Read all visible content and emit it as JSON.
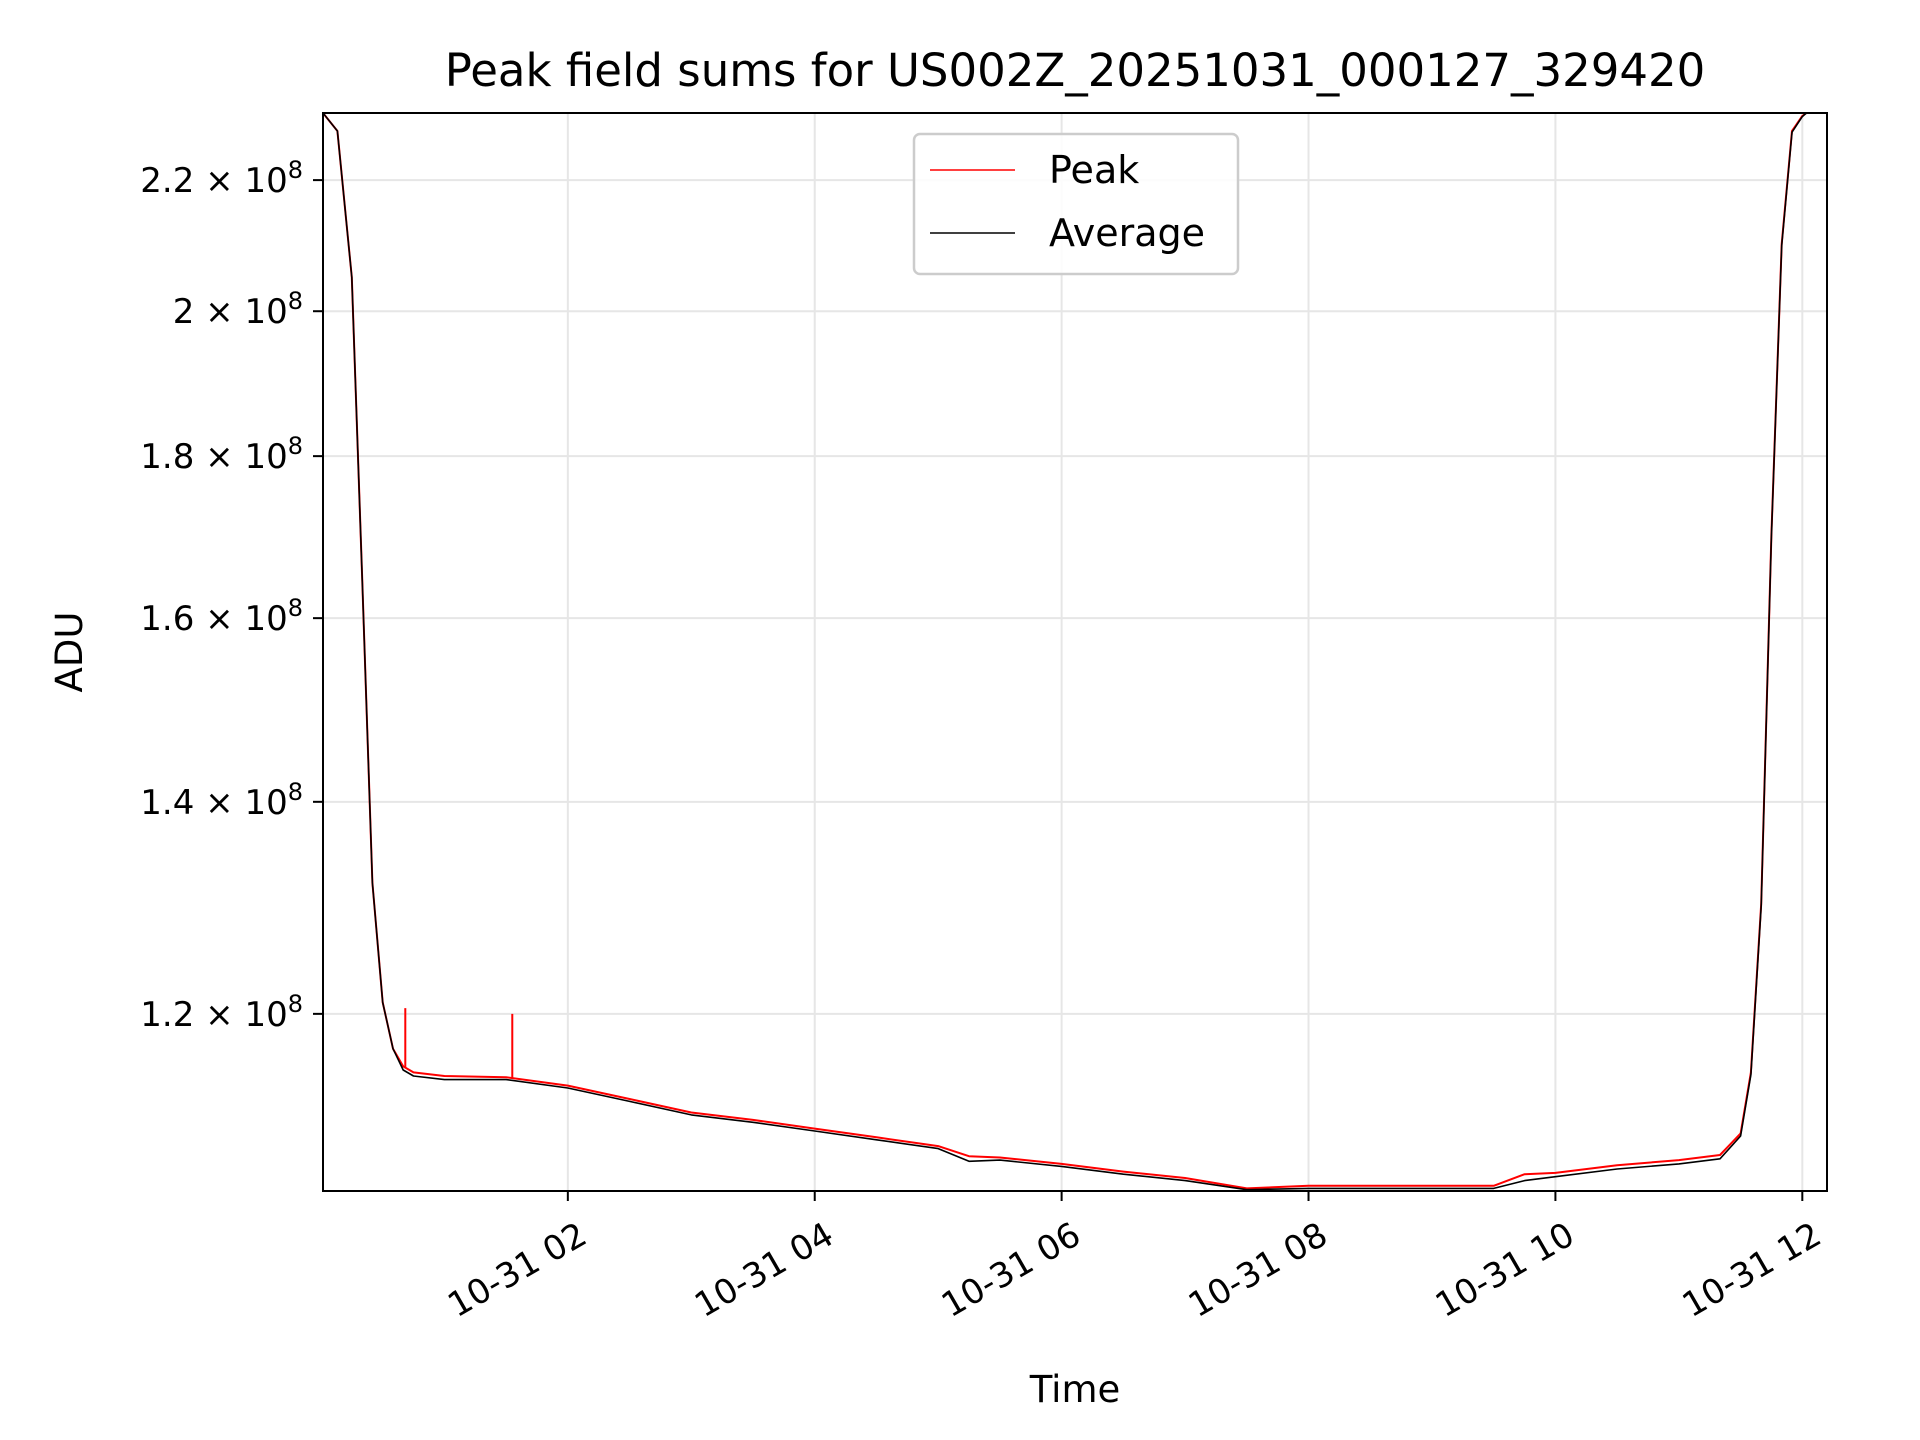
{
  "chart_data": {
    "type": "line",
    "title": "Peak field sums for US002Z_20251031_000127_329420",
    "xlabel": "Time",
    "ylabel": "ADU",
    "y_scale": "log",
    "grid": true,
    "legend_position": "top-center",
    "xlim": [
      "2025-10-31T00:01",
      "2025-10-31T12:12"
    ],
    "ylim": [
      105500000,
      231000000
    ],
    "x_ticks": [
      {
        "value": "2025-10-31T02:00",
        "label": "10-31 02"
      },
      {
        "value": "2025-10-31T04:00",
        "label": "10-31 04"
      },
      {
        "value": "2025-10-31T06:00",
        "label": "10-31 06"
      },
      {
        "value": "2025-10-31T08:00",
        "label": "10-31 08"
      },
      {
        "value": "2025-10-31T10:00",
        "label": "10-31 10"
      },
      {
        "value": "2025-10-31T12:00",
        "label": "10-31 12"
      }
    ],
    "y_ticks": [
      {
        "value": 120000000,
        "mantissa": "1.2",
        "base": "10",
        "exponent": "8"
      },
      {
        "value": 140000000,
        "mantissa": "1.4",
        "base": "10",
        "exponent": "8"
      },
      {
        "value": 160000000,
        "mantissa": "1.6",
        "base": "10",
        "exponent": "8"
      },
      {
        "value": 180000000,
        "mantissa": "1.8",
        "base": "10",
        "exponent": "8"
      },
      {
        "value": 200000000,
        "mantissa": "2",
        "base": "10",
        "exponent": "8"
      },
      {
        "value": 220000000,
        "mantissa": "2.2",
        "base": "10",
        "exponent": "8"
      }
    ],
    "series": [
      {
        "name": "Peak",
        "color": "#ff0000",
        "x": [
          "2025-10-31T00:01",
          "2025-10-31T00:08",
          "2025-10-31T00:15",
          "2025-10-31T00:20",
          "2025-10-31T00:25",
          "2025-10-31T00:30",
          "2025-10-31T00:35",
          "2025-10-31T00:40",
          "2025-10-31T00:45",
          "2025-10-31T01:00",
          "2025-10-31T01:30",
          "2025-10-31T02:00",
          "2025-10-31T02:30",
          "2025-10-31T03:00",
          "2025-10-31T03:30",
          "2025-10-31T04:00",
          "2025-10-31T04:30",
          "2025-10-31T05:00",
          "2025-10-31T05:15",
          "2025-10-31T05:30",
          "2025-10-31T06:00",
          "2025-10-31T06:30",
          "2025-10-31T07:00",
          "2025-10-31T07:30",
          "2025-10-31T08:00",
          "2025-10-31T08:30",
          "2025-10-31T09:00",
          "2025-10-31T09:30",
          "2025-10-31T09:45",
          "2025-10-31T10:00",
          "2025-10-31T10:30",
          "2025-10-31T11:00",
          "2025-10-31T11:20",
          "2025-10-31T11:30",
          "2025-10-31T11:35",
          "2025-10-31T11:40",
          "2025-10-31T11:45",
          "2025-10-31T11:50",
          "2025-10-31T11:55",
          "2025-10-31T12:00",
          "2025-10-31T12:02"
        ],
        "values": [
          231000000,
          228000000,
          205000000,
          165000000,
          132000000,
          121000000,
          117000000,
          115500000,
          115000000,
          114700000,
          114600000,
          113900000,
          112800000,
          111700000,
          111100000,
          110400000,
          109700000,
          109000000,
          108200000,
          108100000,
          107600000,
          107000000,
          106500000,
          105700000,
          105900000,
          105900000,
          105900000,
          105900000,
          106800000,
          106900000,
          107500000,
          107900000,
          108300000,
          110000000,
          115000000,
          130000000,
          170000000,
          210000000,
          228000000,
          230500000,
          231000000
        ]
      },
      {
        "name": "Average",
        "color": "#000000",
        "x": [
          "2025-10-31T00:01",
          "2025-10-31T00:08",
          "2025-10-31T00:15",
          "2025-10-31T00:20",
          "2025-10-31T00:25",
          "2025-10-31T00:30",
          "2025-10-31T00:35",
          "2025-10-31T00:40",
          "2025-10-31T00:45",
          "2025-10-31T01:00",
          "2025-10-31T01:30",
          "2025-10-31T02:00",
          "2025-10-31T02:30",
          "2025-10-31T03:00",
          "2025-10-31T03:30",
          "2025-10-31T04:00",
          "2025-10-31T04:30",
          "2025-10-31T05:00",
          "2025-10-31T05:15",
          "2025-10-31T05:30",
          "2025-10-31T06:00",
          "2025-10-31T06:30",
          "2025-10-31T07:00",
          "2025-10-31T07:30",
          "2025-10-31T08:00",
          "2025-10-31T08:30",
          "2025-10-31T09:00",
          "2025-10-31T09:30",
          "2025-10-31T09:45",
          "2025-10-31T10:00",
          "2025-10-31T10:30",
          "2025-10-31T11:00",
          "2025-10-31T11:20",
          "2025-10-31T11:30",
          "2025-10-31T11:35",
          "2025-10-31T11:40",
          "2025-10-31T11:45",
          "2025-10-31T11:50",
          "2025-10-31T11:55",
          "2025-10-31T12:00",
          "2025-10-31T12:02"
        ],
        "values": [
          231000000,
          228000000,
          205000000,
          165000000,
          132000000,
          121000000,
          117000000,
          115200000,
          114700000,
          114400000,
          114400000,
          113700000,
          112600000,
          111500000,
          110900000,
          110200000,
          109500000,
          108800000,
          107800000,
          107900000,
          107400000,
          106800000,
          106300000,
          105600000,
          105700000,
          105700000,
          105700000,
          105700000,
          106300000,
          106600000,
          107200000,
          107600000,
          108000000,
          109800000,
          114800000,
          129800000,
          169800000,
          209800000,
          227800000,
          230400000,
          231000000
        ]
      }
    ],
    "annotations": [
      {
        "type": "spike",
        "series": "Peak",
        "x": "2025-10-31T00:41",
        "value": 120500000
      },
      {
        "type": "spike",
        "series": "Peak",
        "x": "2025-10-31T01:33",
        "value": 120000000
      }
    ]
  }
}
